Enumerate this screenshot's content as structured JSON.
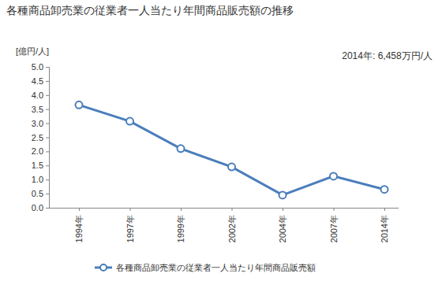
{
  "chart_data": {
    "type": "line",
    "title": "各種商品卸売業の従業者一人当たり年間商品販売額の推移",
    "y_label": "[億円/人]",
    "annotation": "2014年: 6,458万円/人",
    "categories": [
      "1994年",
      "1997年",
      "1999年",
      "2002年",
      "2004年",
      "2007年",
      "2014年"
    ],
    "series": [
      {
        "name": "各種商品卸売業の従業者一人当たり年間商品販売額",
        "color": "#4a7ebb",
        "marker": "circle",
        "values": [
          3.65,
          3.07,
          2.1,
          1.45,
          0.45,
          1.12,
          0.65
        ]
      }
    ],
    "ylim": [
      0,
      5
    ],
    "yticks": [
      {
        "value": 0,
        "label": "0.0"
      },
      0.5,
      {
        "value": 1,
        "label": "1.0"
      },
      1.5,
      {
        "value": 2,
        "label": "2.0"
      },
      2.5,
      {
        "value": 3,
        "label": "3.0"
      },
      3.5,
      {
        "value": 4,
        "label": "4.0"
      },
      4.5,
      {
        "value": 5,
        "label": "5.0"
      }
    ],
    "grid": false,
    "legend": "bottom"
  }
}
